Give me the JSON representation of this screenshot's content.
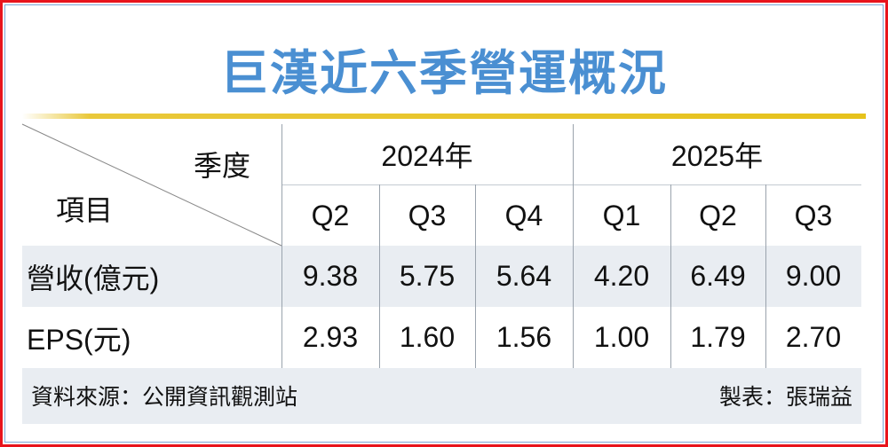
{
  "title": "巨漢近六季營運概況",
  "chart_data": {
    "type": "table",
    "title": "巨漢近六季營運概況",
    "header_corner": {
      "top": "季度",
      "bottom": "項目"
    },
    "years": [
      {
        "label": "2024年",
        "span": 3
      },
      {
        "label": "2025年",
        "span": 3
      }
    ],
    "quarters": [
      "Q2",
      "Q3",
      "Q4",
      "Q1",
      "Q2",
      "Q3"
    ],
    "rows": [
      {
        "label": "營收(億元)",
        "values": [
          "9.38",
          "5.75",
          "5.64",
          "4.20",
          "6.49",
          "9.00"
        ]
      },
      {
        "label": "EPS(元)",
        "values": [
          "2.93",
          "1.60",
          "1.56",
          "1.00",
          "1.79",
          "2.70"
        ]
      }
    ]
  },
  "footer": {
    "source": "資料來源：公開資訊觀測站",
    "author": "製表：張瑞益"
  },
  "colors": {
    "title": "#4a8fd2",
    "accent_line": "#e6c21c",
    "row_shade": "#e9edf2",
    "border": "#e8141c"
  }
}
